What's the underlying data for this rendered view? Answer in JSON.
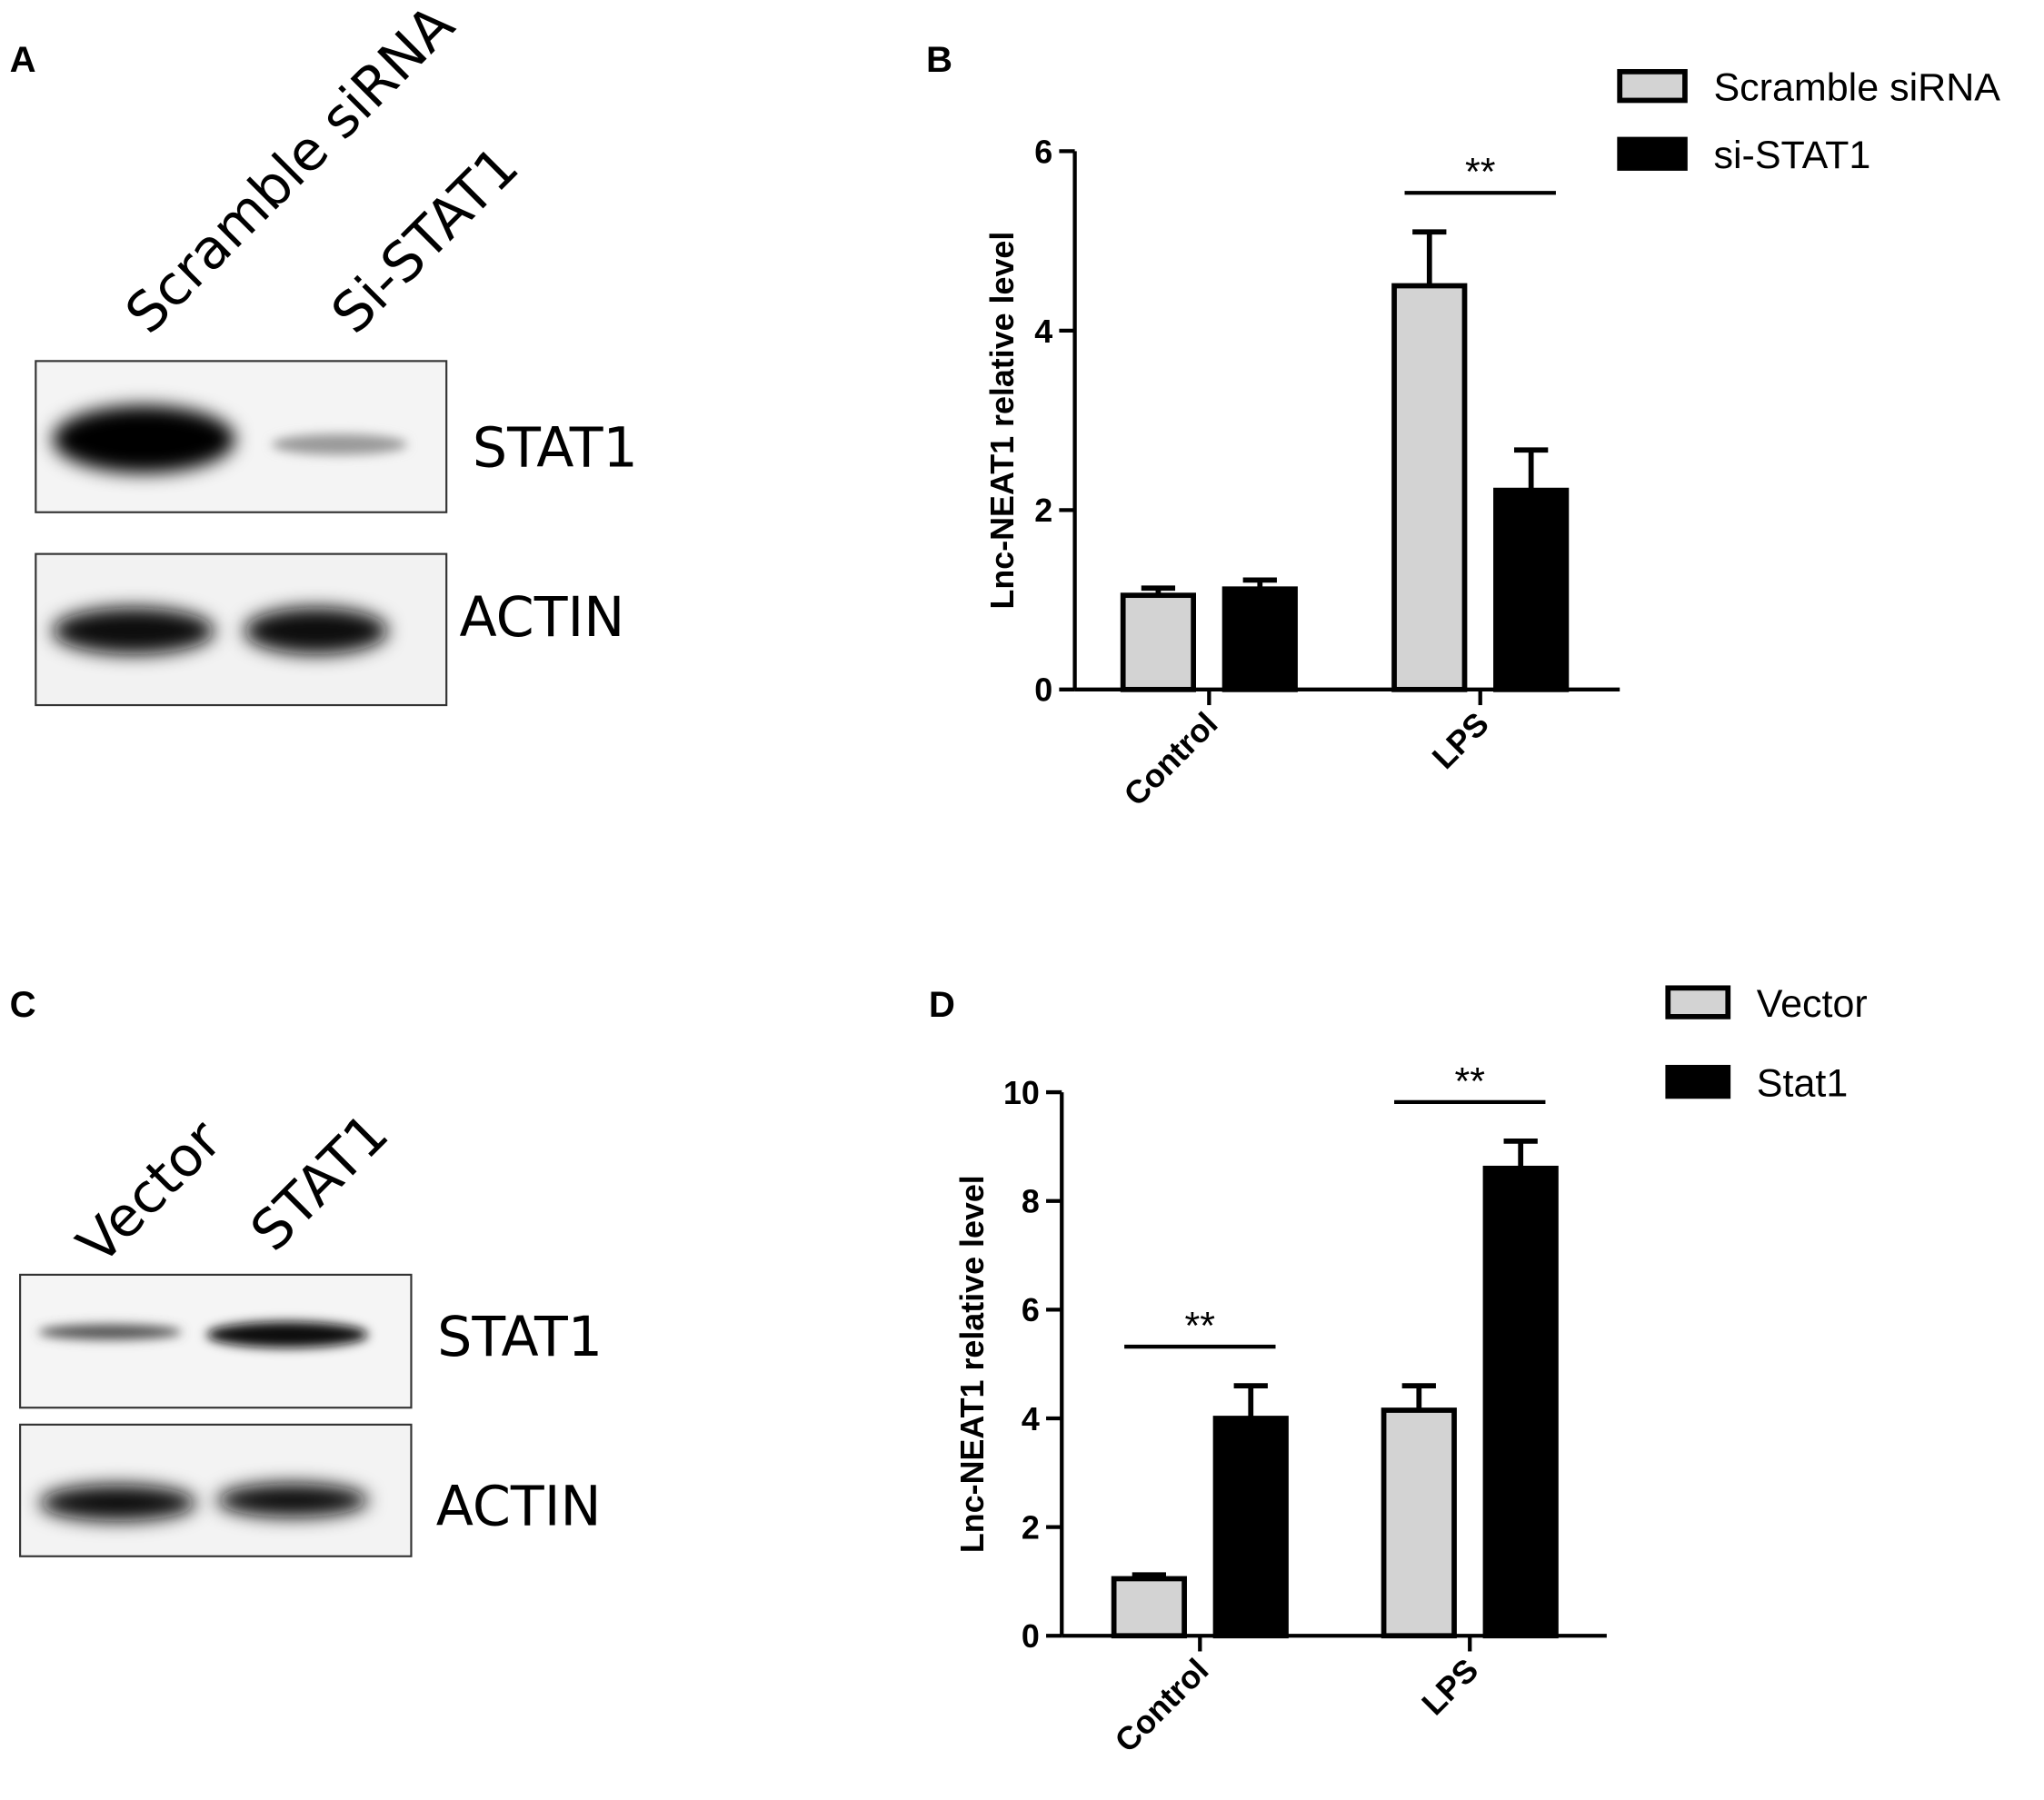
{
  "panels": [
    "A",
    "B",
    "C",
    "D"
  ],
  "blots": [
    {
      "lanes": [
        "Scramble siRNA",
        "Si-STAT1"
      ],
      "rows": [
        "STAT1",
        "ACTIN"
      ]
    },
    {
      "lanes": [
        "Vector",
        "STAT1"
      ],
      "rows": [
        "STAT1",
        "ACTIN"
      ]
    }
  ],
  "chart_data": [
    {
      "type": "bar",
      "y_label": "Lnc-NEAT1 relative level",
      "categories": [
        "Control",
        "LPS"
      ],
      "series": [
        {
          "name": "Scramble siRNA",
          "color": "#d3d3d3",
          "values": [
            1.05,
            4.5
          ],
          "errors": [
            0.08,
            0.6
          ]
        },
        {
          "name": "si-STAT1",
          "color": "#000000",
          "values": [
            1.12,
            2.22
          ],
          "errors": [
            0.1,
            0.45
          ]
        }
      ],
      "ylim": [
        0,
        6
      ],
      "yticks": [
        0,
        2,
        4,
        6
      ],
      "annotations": [
        {
          "text": "**",
          "category": "LPS"
        }
      ]
    },
    {
      "type": "bar",
      "y_label": "Lnc-NEAT1 relative level",
      "categories": [
        "Control",
        "LPS"
      ],
      "series": [
        {
          "name": "Vector",
          "color": "#d3d3d3",
          "values": [
            1.05,
            4.15
          ],
          "errors": [
            0.07,
            0.45
          ]
        },
        {
          "name": "Stat1",
          "color": "#000000",
          "values": [
            4.0,
            8.6
          ],
          "errors": [
            0.6,
            0.5
          ]
        }
      ],
      "ylim": [
        0,
        10
      ],
      "yticks": [
        0,
        2,
        4,
        6,
        8,
        10
      ],
      "annotations": [
        {
          "text": "**",
          "category": "Control"
        },
        {
          "text": "**",
          "category": "LPS"
        }
      ]
    }
  ]
}
